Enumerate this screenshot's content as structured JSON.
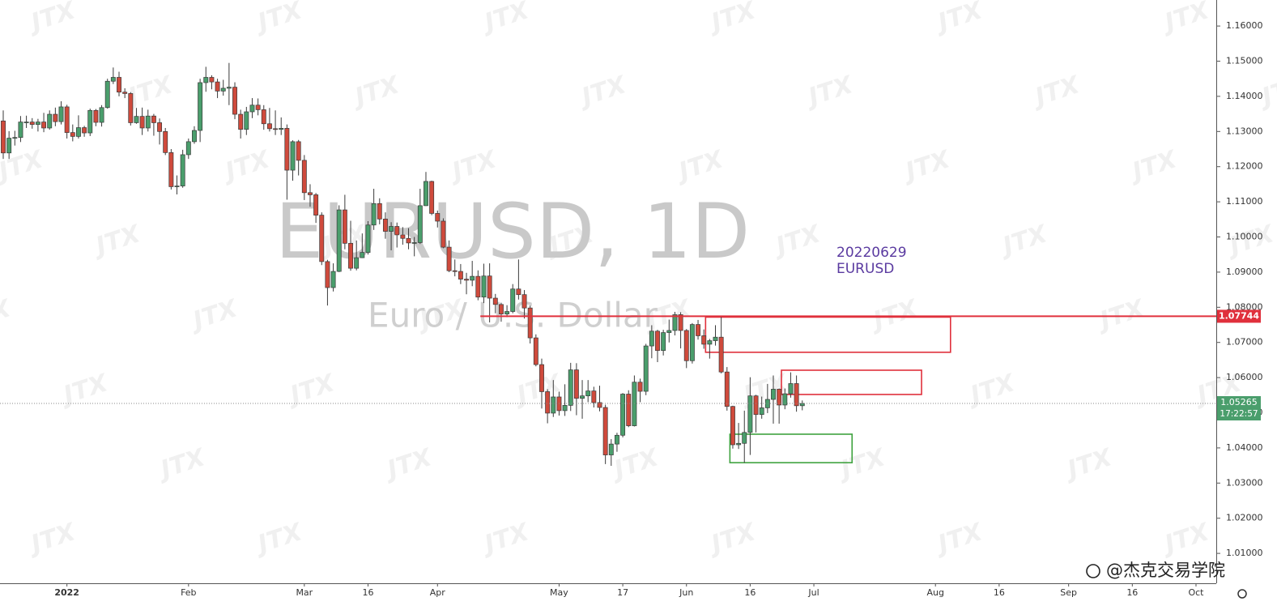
{
  "chart_data": {
    "type": "candlestick",
    "title": "EURUSD, 1D",
    "subtitle": "Euro / U.S. Dollar",
    "watermark": "JTX",
    "brand": "@杰克交易学院",
    "annotation": [
      "20220629",
      "EURUSD"
    ],
    "countdown": "17:22:57",
    "up_color": "#4a9e6c",
    "down_color": "#cf4a3c",
    "xlim": [
      -0.56,
      209.5
    ],
    "ylim": [
      1.0015,
      1.1674
    ],
    "xticks": [
      {
        "value": 11,
        "label": "2022"
      },
      {
        "value": 32,
        "label": "Feb"
      },
      {
        "value": 52,
        "label": "Mar"
      },
      {
        "value": 63,
        "label": "16"
      },
      {
        "value": 75,
        "label": "Apr"
      },
      {
        "value": 96,
        "label": "May"
      },
      {
        "value": 107,
        "label": "17"
      },
      {
        "value": 118,
        "label": "Jun"
      },
      {
        "value": 129,
        "label": "16"
      },
      {
        "value": 140,
        "label": "Jul"
      },
      {
        "value": 161,
        "label": "Aug"
      },
      {
        "value": 172,
        "label": "16"
      },
      {
        "value": 184,
        "label": "Sep"
      },
      {
        "value": 195,
        "label": "16"
      },
      {
        "value": 206,
        "label": "Oct"
      }
    ],
    "yticks": [
      {
        "value": 1.16,
        "label": "1.16000"
      },
      {
        "value": 1.15,
        "label": "1.15000"
      },
      {
        "value": 1.14,
        "label": "1.14000"
      },
      {
        "value": 1.13,
        "label": "1.13000"
      },
      {
        "value": 1.12,
        "label": "1.12000"
      },
      {
        "value": 1.11,
        "label": "1.11000"
      },
      {
        "value": 1.1,
        "label": "1.10000"
      },
      {
        "value": 1.09,
        "label": "1.09000"
      },
      {
        "value": 1.08,
        "label": "1.08000"
      },
      {
        "value": 1.07,
        "label": "1.07000"
      },
      {
        "value": 1.06,
        "label": "1.06000"
      },
      {
        "value": 1.05,
        "label": "1.05000"
      },
      {
        "value": 1.04,
        "label": "1.04000"
      },
      {
        "value": 1.03,
        "label": "1.03000"
      },
      {
        "value": 1.02,
        "label": "1.02000"
      },
      {
        "value": 1.01,
        "label": "1.01000"
      }
    ],
    "level": {
      "value": 1.07744,
      "color": "#e0303c",
      "x_start": 82.4
    },
    "zones": [
      {
        "color": "#e0303c",
        "x": [
          121.3,
          163.6
        ],
        "y": [
          1.0672,
          1.0772
        ]
      },
      {
        "color": "#e0303c",
        "x": [
          134.4,
          158.6
        ],
        "y": [
          1.0552,
          1.0621
        ]
      },
      {
        "color": "#3fa23f",
        "x": [
          125.5,
          146.6
        ],
        "y": [
          1.0358,
          1.0439
        ]
      }
    ],
    "ohlc": [
      [
        1.133,
        1.136,
        1.1222,
        1.1239
      ],
      [
        1.1239,
        1.1301,
        1.1222,
        1.1281
      ],
      [
        1.1281,
        1.1302,
        1.126,
        1.1283
      ],
      [
        1.1283,
        1.1344,
        1.127,
        1.1327
      ],
      [
        1.1327,
        1.1345,
        1.131,
        1.1327
      ],
      [
        1.1327,
        1.1338,
        1.1308,
        1.132
      ],
      [
        1.132,
        1.1336,
        1.13,
        1.1327
      ],
      [
        1.1327,
        1.1353,
        1.1298,
        1.131
      ],
      [
        1.131,
        1.136,
        1.1305,
        1.1349
      ],
      [
        1.1349,
        1.1368,
        1.1315,
        1.1328
      ],
      [
        1.1328,
        1.1386,
        1.132,
        1.137
      ],
      [
        1.137,
        1.1376,
        1.128,
        1.1297
      ],
      [
        1.1297,
        1.132,
        1.1272,
        1.1286
      ],
      [
        1.1286,
        1.1346,
        1.128,
        1.1311
      ],
      [
        1.1311,
        1.1316,
        1.1285,
        1.1296
      ],
      [
        1.1296,
        1.1365,
        1.1287,
        1.136
      ],
      [
        1.136,
        1.1364,
        1.1315,
        1.1326
      ],
      [
        1.1326,
        1.1375,
        1.1314,
        1.1368
      ],
      [
        1.1368,
        1.145,
        1.1365,
        1.1443
      ],
      [
        1.1443,
        1.1482,
        1.1435,
        1.1454
      ],
      [
        1.1454,
        1.147,
        1.14,
        1.1412
      ],
      [
        1.1412,
        1.1423,
        1.1395,
        1.1408
      ],
      [
        1.1408,
        1.1412,
        1.1317,
        1.1325
      ],
      [
        1.1325,
        1.1367,
        1.1322,
        1.1343
      ],
      [
        1.1343,
        1.1368,
        1.129,
        1.131
      ],
      [
        1.131,
        1.1362,
        1.13,
        1.1344
      ],
      [
        1.1344,
        1.135,
        1.1288,
        1.1325
      ],
      [
        1.1325,
        1.1337,
        1.1263,
        1.13
      ],
      [
        1.13,
        1.131,
        1.1233,
        1.124
      ],
      [
        1.124,
        1.125,
        1.1135,
        1.1143
      ],
      [
        1.1143,
        1.1175,
        1.1121,
        1.1145
      ],
      [
        1.1145,
        1.1248,
        1.114,
        1.1234
      ],
      [
        1.1234,
        1.128,
        1.1222,
        1.1271
      ],
      [
        1.1271,
        1.1315,
        1.1265,
        1.1303
      ],
      [
        1.1303,
        1.145,
        1.127,
        1.1439
      ],
      [
        1.1439,
        1.1484,
        1.1413,
        1.1454
      ],
      [
        1.1454,
        1.146,
        1.142,
        1.1441
      ],
      [
        1.1441,
        1.145,
        1.1395,
        1.1415
      ],
      [
        1.1415,
        1.1447,
        1.1402,
        1.1423
      ],
      [
        1.1423,
        1.1495,
        1.1375,
        1.1426
      ],
      [
        1.1426,
        1.144,
        1.1335,
        1.1349
      ],
      [
        1.1349,
        1.1362,
        1.128,
        1.1306
      ],
      [
        1.1306,
        1.137,
        1.129,
        1.1356
      ],
      [
        1.1356,
        1.1395,
        1.1338,
        1.1375
      ],
      [
        1.1375,
        1.1394,
        1.1346,
        1.1362
      ],
      [
        1.1362,
        1.1375,
        1.1305,
        1.1322
      ],
      [
        1.1322,
        1.1367,
        1.13,
        1.1308
      ],
      [
        1.1308,
        1.136,
        1.129,
        1.1306
      ],
      [
        1.1306,
        1.134,
        1.129,
        1.1309
      ],
      [
        1.1309,
        1.132,
        1.1106,
        1.119
      ],
      [
        1.119,
        1.1275,
        1.116,
        1.1271
      ],
      [
        1.1271,
        1.1276,
        1.1175,
        1.1218
      ],
      [
        1.1218,
        1.1233,
        1.1105,
        1.1126
      ],
      [
        1.1126,
        1.115,
        1.1086,
        1.112
      ],
      [
        1.112,
        1.1125,
        1.104,
        1.1062
      ],
      [
        1.1062,
        1.107,
        1.092,
        1.093
      ],
      [
        1.093,
        1.0935,
        1.0805,
        1.0856
      ],
      [
        1.0856,
        1.0925,
        1.0845,
        1.0902
      ],
      [
        1.0902,
        1.109,
        1.09,
        1.1077
      ],
      [
        1.1077,
        1.112,
        1.0965,
        1.0982
      ],
      [
        1.0982,
        1.1046,
        1.0904,
        1.0911
      ],
      [
        1.0911,
        1.099,
        1.0905,
        1.0941
      ],
      [
        1.0941,
        1.101,
        1.094,
        1.0956
      ],
      [
        1.0956,
        1.1045,
        1.095,
        1.1034
      ],
      [
        1.1034,
        1.1137,
        1.102,
        1.1095
      ],
      [
        1.1095,
        1.111,
        1.1036,
        1.1051
      ],
      [
        1.1051,
        1.107,
        1.0995,
        1.1016
      ],
      [
        1.1016,
        1.1042,
        1.0962,
        1.103
      ],
      [
        1.103,
        1.1041,
        1.097,
        1.1006
      ],
      [
        1.1006,
        1.1028,
        1.0978,
        1.0996
      ],
      [
        1.0996,
        1.1025,
        1.0965,
        1.0983
      ],
      [
        1.0983,
        1.1,
        1.0945,
        1.0984
      ],
      [
        1.0984,
        1.1137,
        1.098,
        1.1089
      ],
      [
        1.1089,
        1.1185,
        1.1088,
        1.1158
      ],
      [
        1.1158,
        1.116,
        1.1062,
        1.1067
      ],
      [
        1.1067,
        1.1075,
        1.1027,
        1.1045
      ],
      [
        1.1045,
        1.1053,
        1.0968,
        1.0971
      ],
      [
        1.0971,
        1.099,
        1.09,
        1.0904
      ],
      [
        1.0904,
        1.0936,
        1.0888,
        1.0902
      ],
      [
        1.0902,
        1.0923,
        1.0866,
        1.088
      ],
      [
        1.088,
        1.0898,
        1.0837,
        1.0877
      ],
      [
        1.0877,
        1.0932,
        1.086,
        1.0888
      ],
      [
        1.0888,
        1.0905,
        1.082,
        1.0829
      ],
      [
        1.0829,
        1.0924,
        1.0812,
        1.0889
      ],
      [
        1.0889,
        1.0925,
        1.0757,
        1.0826
      ],
      [
        1.0826,
        1.0838,
        1.0783,
        1.0808
      ],
      [
        1.0808,
        1.0813,
        1.0759,
        1.0781
      ],
      [
        1.0781,
        1.0806,
        1.0772,
        1.0788
      ],
      [
        1.0788,
        1.0866,
        1.0783,
        1.0852
      ],
      [
        1.0852,
        1.0936,
        1.0822,
        1.0836
      ],
      [
        1.0836,
        1.0849,
        1.0768,
        1.0798
      ],
      [
        1.0798,
        1.0805,
        1.0697,
        1.0713
      ],
      [
        1.0713,
        1.0723,
        1.0632,
        1.0637
      ],
      [
        1.0637,
        1.0654,
        1.0512,
        1.056
      ],
      [
        1.056,
        1.0567,
        1.047,
        1.0499
      ],
      [
        1.0499,
        1.0593,
        1.0488,
        1.0545
      ],
      [
        1.0545,
        1.056,
        1.0492,
        1.0506
      ],
      [
        1.0506,
        1.0581,
        1.0491,
        1.0521
      ],
      [
        1.0521,
        1.0642,
        1.0505,
        1.0622
      ],
      [
        1.0622,
        1.0641,
        1.0493,
        1.0541
      ],
      [
        1.0541,
        1.0593,
        1.0483,
        1.0548
      ],
      [
        1.0548,
        1.0593,
        1.053,
        1.0562
      ],
      [
        1.0562,
        1.0574,
        1.0515,
        1.0529
      ],
      [
        1.0529,
        1.0577,
        1.0504,
        1.0515
      ],
      [
        1.0515,
        1.0523,
        1.0354,
        1.038
      ],
      [
        1.038,
        1.0425,
        1.0349,
        1.0411
      ],
      [
        1.0411,
        1.0443,
        1.0389,
        1.0436
      ],
      [
        1.0436,
        1.0556,
        1.043,
        1.0553
      ],
      [
        1.0553,
        1.0564,
        1.0459,
        1.0463
      ],
      [
        1.0463,
        1.0606,
        1.0461,
        1.0587
      ],
      [
        1.0587,
        1.0597,
        1.053,
        1.0561
      ],
      [
        1.0561,
        1.0696,
        1.055,
        1.069
      ],
      [
        1.069,
        1.0749,
        1.0655,
        1.0732
      ],
      [
        1.0732,
        1.0736,
        1.0644,
        1.0677
      ],
      [
        1.0677,
        1.0736,
        1.0663,
        1.0728
      ],
      [
        1.0728,
        1.0765,
        1.07,
        1.0734
      ],
      [
        1.0734,
        1.0787,
        1.072,
        1.0779
      ],
      [
        1.0779,
        1.0786,
        1.0683,
        1.0734
      ],
      [
        1.0734,
        1.0738,
        1.0627,
        1.0648
      ],
      [
        1.0648,
        1.0755,
        1.064,
        1.0751
      ],
      [
        1.0751,
        1.0764,
        1.0708,
        1.0719
      ],
      [
        1.0719,
        1.0737,
        1.0682,
        1.0695
      ],
      [
        1.0695,
        1.071,
        1.0654,
        1.0705
      ],
      [
        1.0705,
        1.0749,
        1.0691,
        1.0715
      ],
      [
        1.0715,
        1.0774,
        1.0612,
        1.0616
      ],
      [
        1.0616,
        1.063,
        1.0506,
        1.0518
      ],
      [
        1.0518,
        1.052,
        1.0398,
        1.0409
      ],
      [
        1.0409,
        1.0471,
        1.0397,
        1.0413
      ],
      [
        1.0413,
        1.0506,
        1.0358,
        1.0444
      ],
      [
        1.0444,
        1.0601,
        1.038,
        1.0548
      ],
      [
        1.0548,
        1.0551,
        1.0444,
        1.0495
      ],
      [
        1.0495,
        1.0546,
        1.0483,
        1.0514
      ],
      [
        1.0514,
        1.0582,
        1.0499,
        1.0538
      ],
      [
        1.0538,
        1.0606,
        1.0469,
        1.0567
      ],
      [
        1.0567,
        1.0569,
        1.0469,
        1.0522
      ],
      [
        1.0522,
        1.0569,
        1.051,
        1.0554
      ],
      [
        1.0554,
        1.0615,
        1.0543,
        1.0583
      ],
      [
        1.0583,
        1.0606,
        1.0503,
        1.052
      ],
      [
        1.052,
        1.0535,
        1.0507,
        1.05265
      ]
    ]
  }
}
